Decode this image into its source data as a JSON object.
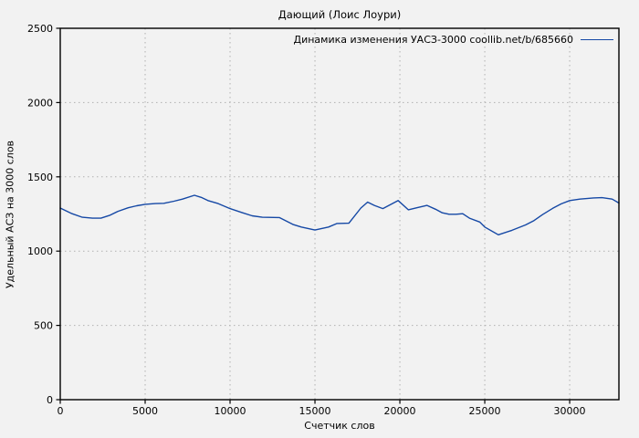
{
  "figure": {
    "title": "Дающий (Лоис Лоури)"
  },
  "chart_data": {
    "type": "line",
    "title": "Дающий (Лоис Лоури)",
    "xlabel": "Счетчик слов",
    "ylabel": "Удельный АСЗ на 3000 слов",
    "legend": {
      "label": "Динамика изменения УАСЗ-3000 coollib.net/b/685660",
      "position": "top-right-inside"
    },
    "grid": true,
    "xlim": [
      0,
      32900
    ],
    "ylim": [
      0,
      2500
    ],
    "xticks": [
      0,
      5000,
      10000,
      15000,
      20000,
      25000,
      30000
    ],
    "yticks": [
      0,
      500,
      1000,
      1500,
      2000,
      2500
    ],
    "colors": {
      "background": "#f2f2f2",
      "line": "#1548a5",
      "grid": "#b0b0b0",
      "border": "#000000",
      "text": "#000000"
    },
    "series": [
      {
        "name": "Динамика изменения УАСЗ-3000 coollib.net/b/685660",
        "color": "#1548a5",
        "points": [
          [
            0,
            1290
          ],
          [
            700,
            1252
          ],
          [
            1300,
            1228
          ],
          [
            1900,
            1222
          ],
          [
            2400,
            1222
          ],
          [
            2900,
            1240
          ],
          [
            3400,
            1268
          ],
          [
            4000,
            1292
          ],
          [
            4500,
            1305
          ],
          [
            5000,
            1315
          ],
          [
            5600,
            1320
          ],
          [
            6100,
            1322
          ],
          [
            6700,
            1336
          ],
          [
            7200,
            1350
          ],
          [
            7900,
            1376
          ],
          [
            8300,
            1362
          ],
          [
            8700,
            1340
          ],
          [
            9300,
            1320
          ],
          [
            10000,
            1286
          ],
          [
            10700,
            1260
          ],
          [
            11300,
            1238
          ],
          [
            11900,
            1228
          ],
          [
            12900,
            1226
          ],
          [
            13700,
            1180
          ],
          [
            14200,
            1162
          ],
          [
            15000,
            1142
          ],
          [
            15800,
            1162
          ],
          [
            16300,
            1186
          ],
          [
            17000,
            1188
          ],
          [
            17700,
            1290
          ],
          [
            18100,
            1330
          ],
          [
            18500,
            1308
          ],
          [
            19000,
            1286
          ],
          [
            19900,
            1340
          ],
          [
            20500,
            1278
          ],
          [
            21000,
            1292
          ],
          [
            21600,
            1308
          ],
          [
            22100,
            1282
          ],
          [
            22500,
            1258
          ],
          [
            22900,
            1248
          ],
          [
            23300,
            1248
          ],
          [
            23700,
            1252
          ],
          [
            24100,
            1222
          ],
          [
            24700,
            1196
          ],
          [
            25000,
            1162
          ],
          [
            25800,
            1110
          ],
          [
            26600,
            1140
          ],
          [
            27400,
            1176
          ],
          [
            27900,
            1206
          ],
          [
            28400,
            1246
          ],
          [
            29000,
            1288
          ],
          [
            29500,
            1318
          ],
          [
            30000,
            1340
          ],
          [
            30600,
            1350
          ],
          [
            31400,
            1358
          ],
          [
            31900,
            1360
          ],
          [
            32500,
            1350
          ],
          [
            32900,
            1324
          ]
        ]
      }
    ]
  }
}
